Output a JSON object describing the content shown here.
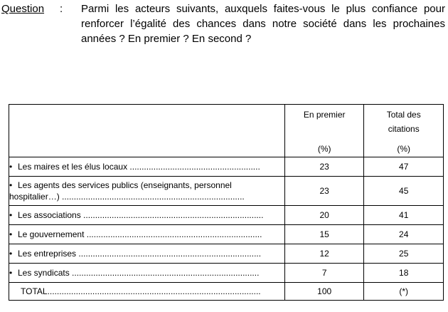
{
  "question": {
    "label": "Question",
    "colon": ":",
    "text": "Parmi les acteurs suivants, auxquels faites-vous le plus confiance pour renforcer l’égalité des chances dans notre société dans les prochaines années ? En premier ? En second ?"
  },
  "table": {
    "headers": {
      "first_line1": "En premier",
      "first_pct": "(%)",
      "total_line1": "Total des",
      "total_line2": "citations",
      "total_pct": "(%)"
    },
    "bullet": "•",
    "rows": [
      {
        "label": "Les maires et les élus locaux",
        "dots": " .......................................................",
        "first": "23",
        "total": "47"
      },
      {
        "label": "Les agents des services publics (enseignants, personnel",
        "label2": "hospitalier…)",
        "dots": " .............................................................................",
        "first": "23",
        "total": "45"
      },
      {
        "label": "Les associations",
        "dots": " ............................................................................",
        "first": "20",
        "total": "41"
      },
      {
        "label": "Le gouvernement",
        "dots": " ..........................................................................",
        "first": "15",
        "total": "24"
      },
      {
        "label": "Les entreprises",
        "dots": " .............................................................................",
        "first": "12",
        "total": "25"
      },
      {
        "label": "Les syndicats",
        "dots": " ...............................................................................",
        "first": "7",
        "total": "18"
      }
    ],
    "total": {
      "label": "TOTAL",
      "dots": "..........................................................................................",
      "first": "100",
      "total": "(*)"
    }
  }
}
